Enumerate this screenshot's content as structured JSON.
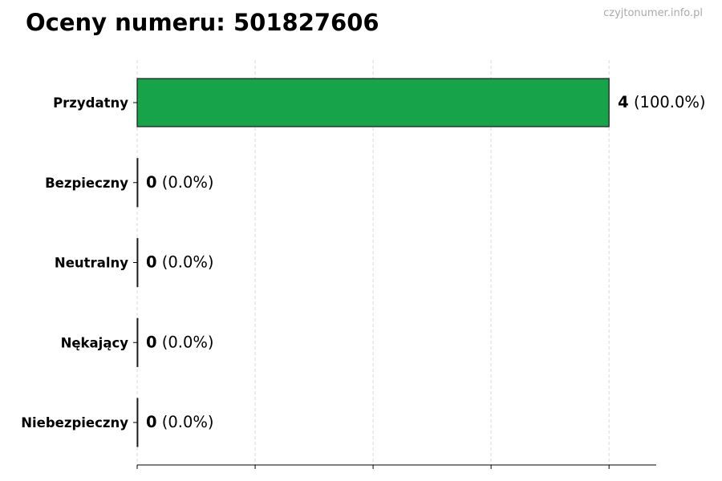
{
  "chart_data": {
    "type": "bar",
    "orientation": "horizontal",
    "title": "Oceny numeru: 501827606",
    "watermark": "czyjtonumer.info.pl",
    "categories": [
      "Przydatny",
      "Bezpieczny",
      "Neutralny",
      "Nękający",
      "Niebezpieczny"
    ],
    "values": [
      4,
      0,
      0,
      0,
      0
    ],
    "value_labels": [
      "4",
      "0",
      "0",
      "0",
      "0"
    ],
    "percent_labels": [
      "(100.0%)",
      "(0.0%)",
      "(0.0%)",
      "(0.0%)",
      "(0.0%)"
    ],
    "xlim": [
      0,
      4.4
    ],
    "xticks": [
      0,
      1,
      2,
      3,
      4
    ],
    "xtick_labels_shown": false,
    "grid": "x dashed",
    "bar_color": "#16a34a",
    "bar_edge_color": "#1a1a1a",
    "grid_color": "#d9d9d9"
  }
}
